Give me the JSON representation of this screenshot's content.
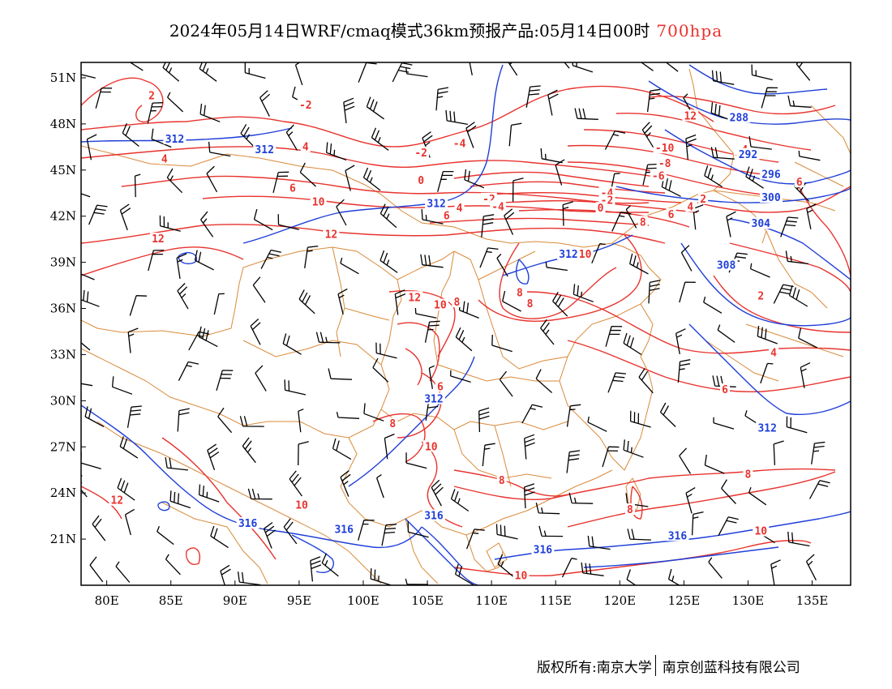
{
  "title": {
    "text": "2024年05月14日WRF/cmaq模式36km预报产品:05月14日00时",
    "level": "700hpa"
  },
  "colors": {
    "temperature": "#e8332e",
    "geopotential": "#1f3fd8",
    "border": "#d98a3a",
    "barb": "#000000"
  },
  "axes": {
    "lon_ticks": [
      "80E",
      "85E",
      "90E",
      "95E",
      "100E",
      "105E",
      "110E",
      "115E",
      "120E",
      "125E",
      "130E",
      "135E"
    ],
    "lon_values": [
      80,
      85,
      90,
      95,
      100,
      105,
      110,
      115,
      120,
      125,
      130,
      135
    ],
    "lat_ticks": [
      "51N",
      "48N",
      "45N",
      "42N",
      "39N",
      "36N",
      "33N",
      "30N",
      "27N",
      "24N",
      "21N"
    ],
    "lat_values": [
      51,
      48,
      45,
      42,
      39,
      36,
      33,
      30,
      27,
      24,
      21
    ],
    "lon_range": [
      78,
      138
    ],
    "lat_range": [
      18,
      52
    ]
  },
  "temp_contour_labels": [
    {
      "text": "2",
      "lon": 83.5,
      "lat": 49.8
    },
    {
      "text": "-2",
      "lon": 95.5,
      "lat": 49.2
    },
    {
      "text": "4",
      "lon": 84.5,
      "lat": 45.7
    },
    {
      "text": "4",
      "lon": 95.5,
      "lat": 46.5
    },
    {
      "text": "-2",
      "lon": 104.5,
      "lat": 46.1
    },
    {
      "text": "-4",
      "lon": 107.5,
      "lat": 46.7
    },
    {
      "text": "6",
      "lon": 94.5,
      "lat": 43.8
    },
    {
      "text": "0",
      "lon": 104.5,
      "lat": 44.3
    },
    {
      "text": "-2",
      "lon": 109.8,
      "lat": 43.1
    },
    {
      "text": "-4",
      "lon": 110.5,
      "lat": 42.6
    },
    {
      "text": "4",
      "lon": 107.5,
      "lat": 42.5
    },
    {
      "text": "6",
      "lon": 106.5,
      "lat": 42.0
    },
    {
      "text": "10",
      "lon": 96.5,
      "lat": 42.9
    },
    {
      "text": "12",
      "lon": 84.0,
      "lat": 40.5
    },
    {
      "text": "12",
      "lon": 97.5,
      "lat": 40.8
    },
    {
      "text": "12",
      "lon": 125.5,
      "lat": 48.5
    },
    {
      "text": "-10",
      "lon": 123.5,
      "lat": 46.4
    },
    {
      "text": "-8",
      "lon": 123.5,
      "lat": 45.4
    },
    {
      "text": "-6",
      "lon": 123.0,
      "lat": 44.6
    },
    {
      "text": "-4",
      "lon": 119.0,
      "lat": 43.5
    },
    {
      "text": "-2",
      "lon": 119.0,
      "lat": 43.0
    },
    {
      "text": "0",
      "lon": 118.5,
      "lat": 42.5
    },
    {
      "text": "2",
      "lon": 126.5,
      "lat": 43.1
    },
    {
      "text": "4",
      "lon": 125.5,
      "lat": 42.6
    },
    {
      "text": "6",
      "lon": 124.0,
      "lat": 42.1
    },
    {
      "text": "8",
      "lon": 121.8,
      "lat": 41.6
    },
    {
      "text": "-4",
      "lon": 129.5,
      "lat": 46.3
    },
    {
      "text": "6",
      "lon": 134.0,
      "lat": 44.2
    },
    {
      "text": "10",
      "lon": 117.3,
      "lat": 39.5
    },
    {
      "text": "8",
      "lon": 112.2,
      "lat": 37.0
    },
    {
      "text": "8",
      "lon": 113.0,
      "lat": 36.3
    },
    {
      "text": "12",
      "lon": 104.0,
      "lat": 36.7
    },
    {
      "text": "10",
      "lon": 106.0,
      "lat": 36.2
    },
    {
      "text": "8",
      "lon": 107.3,
      "lat": 36.4
    },
    {
      "text": "2",
      "lon": 131.0,
      "lat": 36.8
    },
    {
      "text": "4",
      "lon": 132.0,
      "lat": 33.1
    },
    {
      "text": "6",
      "lon": 106.0,
      "lat": 30.9
    },
    {
      "text": "6",
      "lon": 128.2,
      "lat": 30.7
    },
    {
      "text": "8",
      "lon": 102.3,
      "lat": 28.5
    },
    {
      "text": "10",
      "lon": 105.3,
      "lat": 27.0
    },
    {
      "text": "8",
      "lon": 110.8,
      "lat": 24.8
    },
    {
      "text": "8",
      "lon": 130.0,
      "lat": 25.2
    },
    {
      "text": "12",
      "lon": 80.8,
      "lat": 23.5
    },
    {
      "text": "10",
      "lon": 95.2,
      "lat": 23.2
    },
    {
      "text": "8",
      "lon": 120.8,
      "lat": 22.9
    },
    {
      "text": "10",
      "lon": 131.0,
      "lat": 21.5
    },
    {
      "text": "10",
      "lon": 112.3,
      "lat": 18.6
    }
  ],
  "height_contour_labels": [
    {
      "text": "312",
      "lon": 85.3,
      "lat": 47.0
    },
    {
      "text": "312",
      "lon": 92.3,
      "lat": 46.3
    },
    {
      "text": "312",
      "lon": 105.7,
      "lat": 42.8
    },
    {
      "text": "288",
      "lon": 129.3,
      "lat": 48.4
    },
    {
      "text": "292",
      "lon": 130.0,
      "lat": 46.0
    },
    {
      "text": "296",
      "lon": 131.8,
      "lat": 44.7
    },
    {
      "text": "300",
      "lon": 131.8,
      "lat": 43.2
    },
    {
      "text": "304",
      "lon": 131.0,
      "lat": 41.5
    },
    {
      "text": "312",
      "lon": 116.0,
      "lat": 39.5
    },
    {
      "text": "308",
      "lon": 128.3,
      "lat": 38.8
    },
    {
      "text": "312",
      "lon": 105.5,
      "lat": 30.1
    },
    {
      "text": "312",
      "lon": 131.5,
      "lat": 28.2
    },
    {
      "text": "316",
      "lon": 91.0,
      "lat": 22.0
    },
    {
      "text": "316",
      "lon": 98.5,
      "lat": 21.6
    },
    {
      "text": "316",
      "lon": 105.5,
      "lat": 22.5
    },
    {
      "text": "316",
      "lon": 114.0,
      "lat": 20.3
    },
    {
      "text": "316",
      "lon": 124.5,
      "lat": 21.2
    }
  ],
  "footer": {
    "left": "版权所有:南京大学",
    "right": "南京创蓝科技有限公司"
  }
}
